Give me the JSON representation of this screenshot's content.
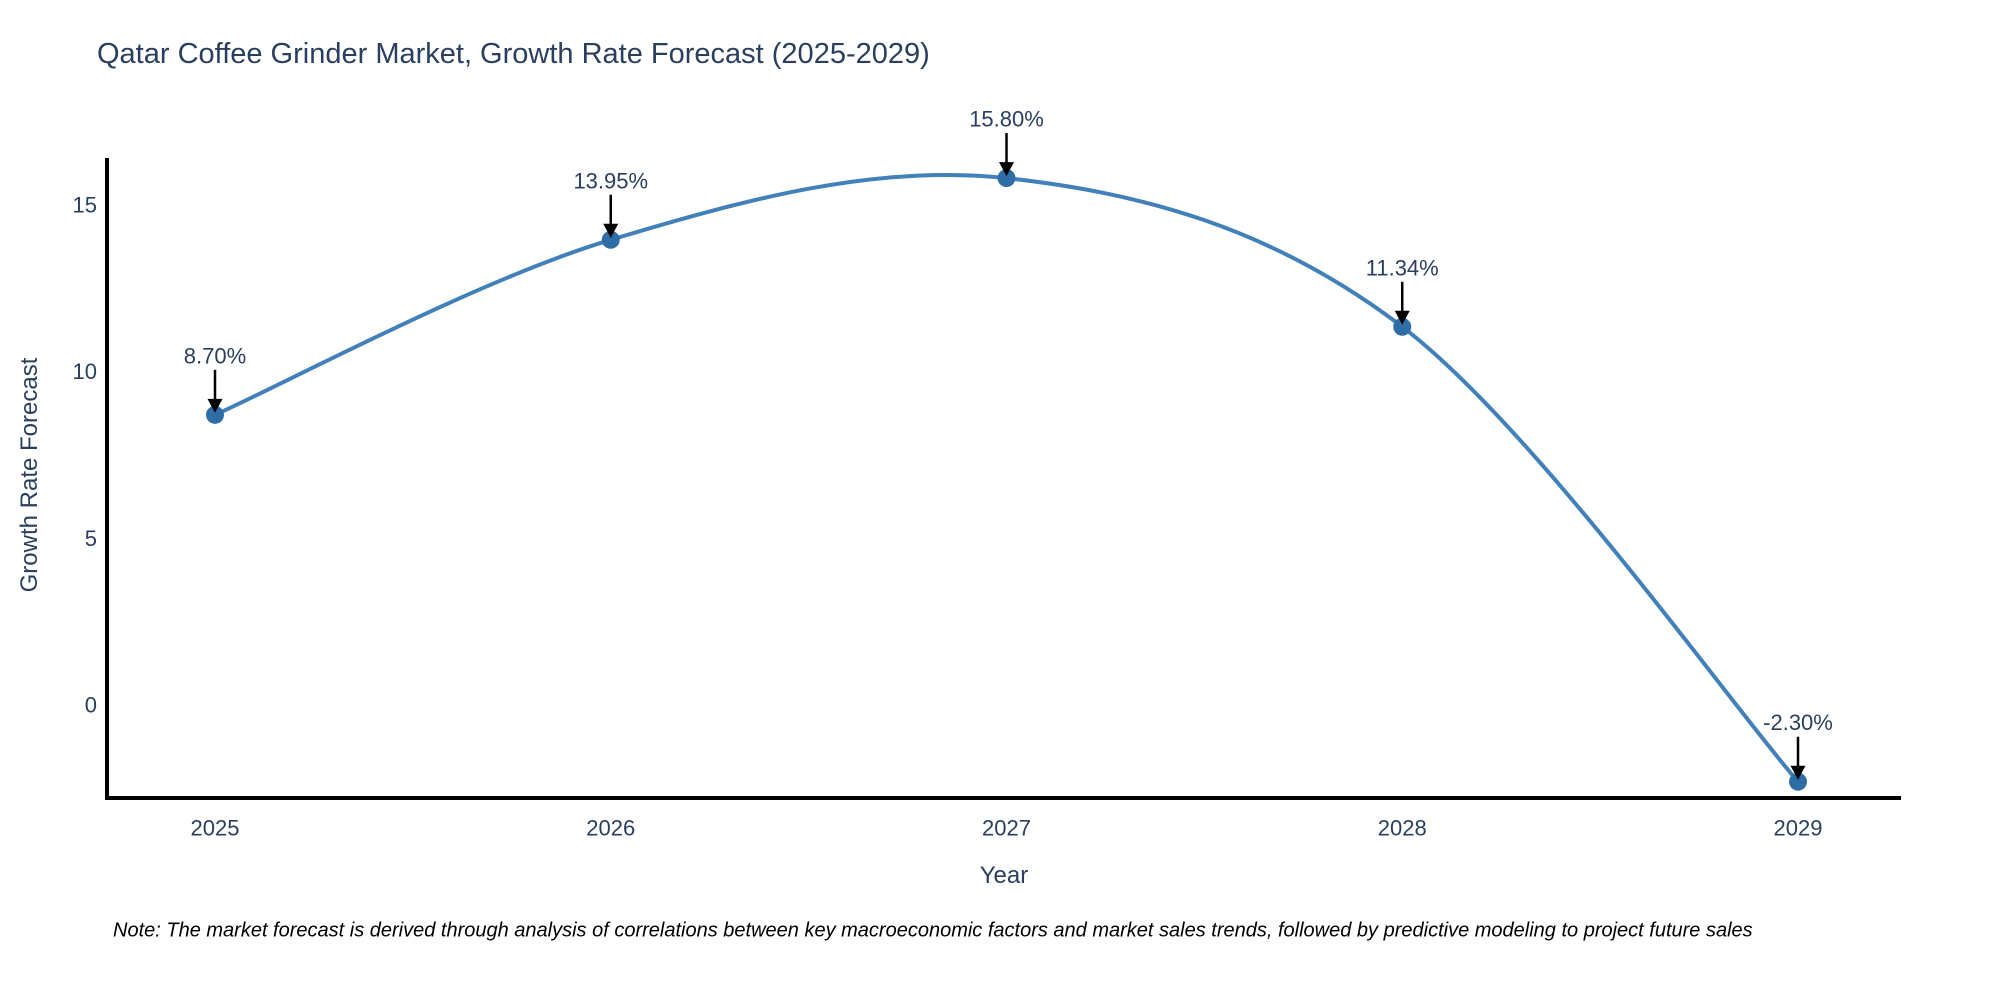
{
  "chart_data": {
    "type": "line",
    "line_shape": "spline",
    "categories": [
      "2025",
      "2026",
      "2027",
      "2028",
      "2029"
    ],
    "values": [
      8.7,
      13.95,
      15.8,
      11.34,
      -2.3
    ],
    "point_labels": [
      "8.70%",
      "13.95%",
      "15.80%",
      "11.34%",
      "-2.30%"
    ],
    "title": "Qatar Coffee Grinder Market, Growth Rate Forecast (2025-2029)",
    "xlabel": "Year",
    "ylabel": "Growth Rate Forecast",
    "yticks": [
      "0",
      "5",
      "10",
      "15"
    ],
    "ylim": [
      -2.8,
      16.4
    ],
    "grid": false,
    "legend": "none",
    "annotations_have_arrows": true,
    "colors": {
      "line": "#4180b9",
      "marker": "#2e6da6",
      "axis": "#000000",
      "tick_text": "#2a3f5f",
      "title_text": "#2a3f5f",
      "annotation_text": "#2a3f5f",
      "annotation_arrow": "#000000",
      "note_text": "#000000"
    }
  },
  "note": {
    "text": "Note: The market forecast is derived through analysis of correlations between key macroeconomic factors and market sales trends, followed by predictive modeling to project future sales"
  }
}
